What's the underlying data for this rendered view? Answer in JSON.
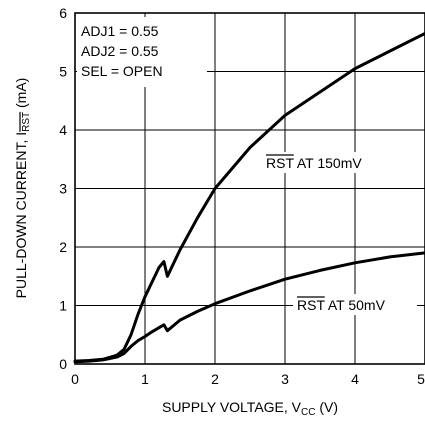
{
  "chart_data": {
    "type": "line",
    "xlabel": "SUPPLY VOLTAGE, V",
    "xlabel_sub": "CC",
    "xlabel_unit": " (V)",
    "ylabel": "PULL-DOWN CURRENT, I",
    "ylabel_sub": "RST",
    "ylabel_unit": " (mA)",
    "xlim": [
      0,
      5
    ],
    "ylim": [
      0,
      6
    ],
    "xticks": [
      "0",
      "1",
      "2",
      "3",
      "4",
      "5"
    ],
    "yticks": [
      "0",
      "1",
      "2",
      "3",
      "4",
      "5",
      "6"
    ],
    "grid": true,
    "annotations": [
      "ADJ1 = 0.55",
      "ADJ2 = 0.55",
      "SEL = OPEN"
    ],
    "series": [
      {
        "name": "RST AT 150mV",
        "label_bar": "RST",
        "label_rest": " AT 150mV",
        "x": [
          0,
          0.2,
          0.4,
          0.6,
          0.7,
          0.8,
          0.9,
          1.0,
          1.1,
          1.2,
          1.27,
          1.32,
          1.5,
          1.75,
          2.0,
          2.5,
          3.0,
          3.5,
          4.0,
          4.5,
          5.0
        ],
        "y": [
          0.05,
          0.06,
          0.08,
          0.15,
          0.25,
          0.5,
          0.85,
          1.15,
          1.4,
          1.65,
          1.75,
          1.5,
          1.95,
          2.5,
          3.0,
          3.7,
          4.25,
          4.65,
          5.05,
          5.35,
          5.65
        ]
      },
      {
        "name": "RST AT 50mV",
        "label_bar": "RST",
        "label_rest": " AT 50mV",
        "x": [
          0,
          0.2,
          0.4,
          0.6,
          0.7,
          0.8,
          0.9,
          1.0,
          1.1,
          1.2,
          1.27,
          1.32,
          1.5,
          1.75,
          2.0,
          2.5,
          3.0,
          3.5,
          4.0,
          4.5,
          5.0
        ],
        "y": [
          0.04,
          0.05,
          0.07,
          0.12,
          0.18,
          0.3,
          0.4,
          0.47,
          0.55,
          0.62,
          0.67,
          0.57,
          0.75,
          0.9,
          1.03,
          1.25,
          1.45,
          1.6,
          1.73,
          1.83,
          1.9
        ]
      }
    ]
  }
}
